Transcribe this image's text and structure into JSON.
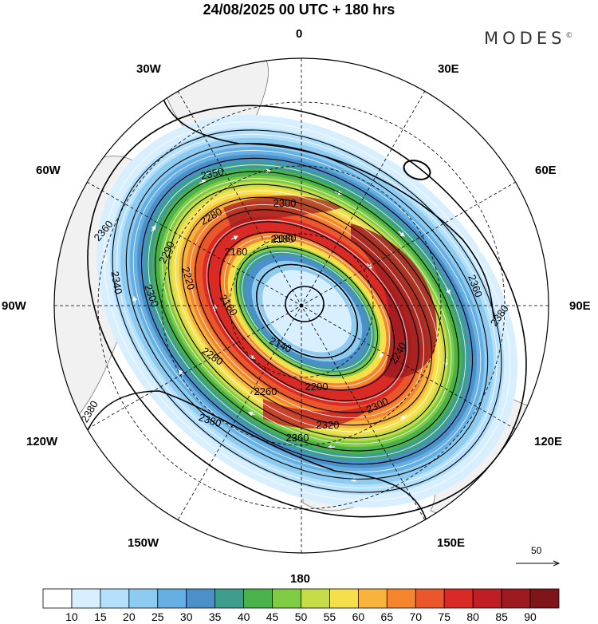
{
  "header": {
    "title": "24/08/2025  00 UTC  + 180 hrs",
    "brand": "MODES",
    "brand_mark": "©"
  },
  "map": {
    "projection": "north-polar-stereographic",
    "longitude_labels": [
      "0",
      "30E",
      "60E",
      "90E",
      "120E",
      "150E",
      "180",
      "150W",
      "120W",
      "90W",
      "60W",
      "30W"
    ],
    "contour_labels": [
      "2350",
      "2300",
      "2280",
      "2180",
      "2160",
      "2360",
      "2340",
      "2300",
      "2220",
      "2290",
      "2180",
      "2140",
      "2160",
      "2240",
      "2260",
      "2280",
      "2200",
      "2300",
      "2320",
      "2360",
      "2380",
      "2380",
      "2380",
      "2360"
    ],
    "wind_field": "jet streamlines",
    "reference_vector": "50"
  },
  "colorbar": {
    "ticks": [
      "10",
      "15",
      "20",
      "25",
      "30",
      "35",
      "40",
      "45",
      "50",
      "55",
      "60",
      "65",
      "70",
      "75",
      "80",
      "85",
      "90"
    ],
    "colors": [
      "#ffffff",
      "#d8efff",
      "#b4e0fb",
      "#8ecbf1",
      "#66afe2",
      "#4b90c8",
      "#3e9e8e",
      "#49b24b",
      "#7fcb43",
      "#c6dc48",
      "#f5e04b",
      "#f8b33d",
      "#f5862e",
      "#e9572a",
      "#d92a26",
      "#bf1e24",
      "#9d1a20",
      "#7f1518"
    ]
  }
}
